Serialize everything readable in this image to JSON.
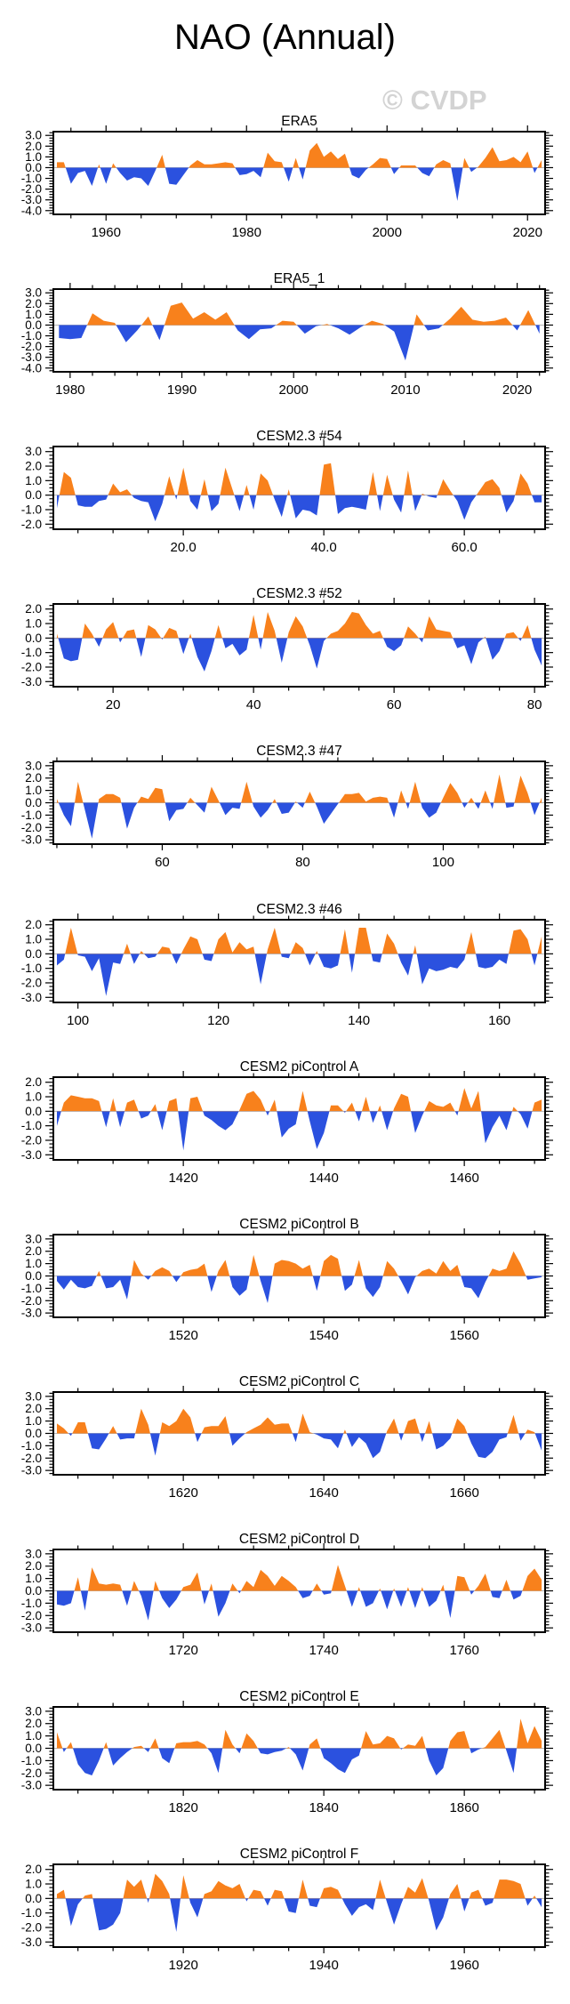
{
  "page": {
    "title": "NAO (Annual)",
    "watermark": "© CVDP"
  },
  "colors": {
    "positive_fill": "#F8811C",
    "negative_fill": "#2B51DF",
    "zero_line": "#B3B3B3",
    "frame": "#000000",
    "watermark": "#D3D3D3",
    "text": "#000000"
  },
  "chart_data": [
    {
      "type": "area",
      "title": "ERA5",
      "x_start": 1953,
      "x_step": 1,
      "xlim": [
        1952.5,
        2022.5
      ],
      "xticks": [
        1960,
        1980,
        2000,
        2020
      ],
      "xtick_labels": [
        "1960",
        "1980",
        "2000",
        "2020"
      ],
      "x_minor_step": 5,
      "ylim": [
        -4.35,
        3.35
      ],
      "yticks": [
        3,
        2,
        1,
        0,
        -1,
        -2,
        -3,
        -4
      ],
      "ytick_labels": [
        "3.0",
        "2.0",
        "1.0",
        "0.0",
        "-1.0",
        "-2.0",
        "-3.0",
        "-4.0"
      ],
      "values": [
        0.5,
        0.5,
        -1.5,
        -0.5,
        -0.3,
        -1.7,
        0.3,
        -1.5,
        0.4,
        -0.5,
        -1.2,
        -0.9,
        -1.0,
        -1.7,
        -0.3,
        1.2,
        -1.5,
        -1.6,
        -0.7,
        0.2,
        0.7,
        0.3,
        0.3,
        0.4,
        0.5,
        0.4,
        -0.7,
        -0.6,
        -0.3,
        -0.9,
        1.4,
        0.6,
        0.5,
        -1.3,
        0.9,
        -1.1,
        1.6,
        2.3,
        1.0,
        1.5,
        0.8,
        1.3,
        -0.7,
        -1.0,
        -0.2,
        0.3,
        0.9,
        0.8,
        -0.6,
        0.2,
        0.2,
        0.2,
        -0.5,
        -0.8,
        0.3,
        0.7,
        0.4,
        -3.1,
        0.9,
        -0.4,
        0.1,
        0.9,
        1.9,
        0.6,
        0.7,
        1.0,
        0.5,
        1.5,
        -0.5,
        0.7
      ]
    },
    {
      "type": "area",
      "title": "ERA5_1",
      "x_start": 1979,
      "x_step": 1,
      "xlim": [
        1978.5,
        2022.5
      ],
      "xticks": [
        1980,
        1990,
        2000,
        2010,
        2020
      ],
      "xtick_labels": [
        "1980",
        "1990",
        "2000",
        "2010",
        "2020"
      ],
      "x_minor_step": 2,
      "ylim": [
        -4.35,
        3.35
      ],
      "yticks": [
        3,
        2,
        1,
        0,
        -1,
        -2,
        -3,
        -4
      ],
      "ytick_labels": [
        "3.0",
        "2.0",
        "1.0",
        "0.0",
        "-1.0",
        "-2.0",
        "-3.0",
        "-4.0"
      ],
      "values": [
        -1.2,
        -1.3,
        -1.2,
        1.1,
        0.4,
        0.2,
        -1.6,
        -0.5,
        0.8,
        -1.4,
        1.8,
        2.1,
        0.6,
        1.2,
        0.5,
        1.2,
        -0.5,
        -1.3,
        -0.4,
        -0.3,
        0.4,
        0.3,
        -0.8,
        -0.1,
        0.1,
        -0.3,
        -0.9,
        -0.2,
        0.4,
        0.1,
        -0.6,
        -3.3,
        1.0,
        -0.5,
        -0.3,
        0.6,
        1.7,
        0.5,
        0.3,
        0.4,
        0.7,
        -0.5,
        1.4,
        -0.8
      ]
    },
    {
      "type": "area",
      "title": "CESM2.3 #54",
      "x_start": 2,
      "x_step": 1,
      "xlim": [
        1.5,
        71.5
      ],
      "xticks": [
        20,
        40,
        60
      ],
      "xtick_labels": [
        "20.0",
        "40.0",
        "60.0"
      ],
      "x_minor_step": 5,
      "ylim": [
        -2.35,
        3.35
      ],
      "yticks": [
        3,
        2,
        1,
        0,
        -1,
        -2
      ],
      "ytick_labels": [
        "3.0",
        "2.0",
        "1.0",
        "0.0",
        "-1.0",
        "-2.0"
      ],
      "values": [
        -0.9,
        1.6,
        1.2,
        -0.7,
        -0.8,
        -0.8,
        -0.4,
        -0.3,
        0.8,
        0.2,
        0.4,
        -0.2,
        -0.4,
        -0.5,
        -1.8,
        -0.6,
        1.3,
        -0.3,
        1.9,
        -0.4,
        -1.0,
        1.1,
        -1.1,
        -0.6,
        1.9,
        0.4,
        -1.1,
        0.7,
        -1.0,
        1.5,
        1.0,
        -0.3,
        -1.5,
        0.4,
        -1.6,
        -1.0,
        -1.1,
        -1.4,
        2.1,
        2.2,
        -1.3,
        -0.9,
        -0.8,
        -0.9,
        -1.0,
        1.6,
        -1.1,
        1.4,
        -0.3,
        -1.2,
        1.7,
        -1.1,
        0.1,
        -0.1,
        -0.2,
        1.1,
        0.3,
        -0.4,
        -1.7,
        -0.5,
        0.2,
        0.9,
        1.1,
        0.5,
        -1.2,
        -0.4,
        1.5,
        0.8,
        -0.5,
        -0.5
      ]
    },
    {
      "type": "area",
      "title": "CESM2.3 #52",
      "x_start": 12,
      "x_step": 1,
      "xlim": [
        11.5,
        81.5
      ],
      "xticks": [
        20,
        40,
        60,
        80
      ],
      "xtick_labels": [
        "20",
        "40",
        "60",
        "80"
      ],
      "x_minor_step": 5,
      "ylim": [
        -3.35,
        2.35
      ],
      "yticks": [
        2,
        1,
        0,
        -1,
        -2,
        -3
      ],
      "ytick_labels": [
        "2.0",
        "1.0",
        "0.0",
        "-1.0",
        "-2.0",
        "-3.0"
      ],
      "values": [
        0.3,
        -1.4,
        -1.6,
        -1.5,
        1.0,
        0.3,
        -0.6,
        0.6,
        1.1,
        -0.3,
        0.5,
        0.6,
        -1.3,
        0.9,
        0.6,
        -0.1,
        0.7,
        0.5,
        -1.1,
        0.3,
        -1.3,
        -2.3,
        -0.9,
        0.9,
        -0.7,
        -0.4,
        -1.2,
        -0.8,
        1.6,
        -0.8,
        1.8,
        0.5,
        -1.7,
        0.4,
        1.5,
        0.8,
        -0.5,
        -2.1,
        -0.2,
        0.3,
        0.5,
        1.0,
        1.8,
        1.7,
        0.9,
        0.3,
        0.5,
        -0.6,
        -0.9,
        -0.5,
        0.8,
        0.3,
        -0.3,
        1.5,
        0.6,
        0.5,
        0.4,
        -0.7,
        -0.5,
        -1.8,
        -0.3,
        0.1,
        -1.5,
        -0.9,
        0.3,
        0.4,
        -0.2,
        0.9,
        -0.8,
        -1.9
      ]
    },
    {
      "type": "area",
      "title": "CESM2.3 #47",
      "x_start": 45,
      "x_step": 1,
      "xlim": [
        44.5,
        114.5
      ],
      "xticks": [
        60,
        80,
        100
      ],
      "xtick_labels": [
        "60",
        "80",
        "100"
      ],
      "x_minor_step": 5,
      "ylim": [
        -3.35,
        3.35
      ],
      "yticks": [
        3,
        2,
        1,
        0,
        -1,
        -2,
        -3
      ],
      "ytick_labels": [
        "3.0",
        "2.0",
        "1.0",
        "0.0",
        "-1.0",
        "-2.0",
        "-3.0"
      ],
      "values": [
        0.3,
        -1.0,
        -1.9,
        1.7,
        -0.6,
        -2.9,
        0.3,
        0.7,
        0.7,
        0.4,
        -2.1,
        -0.4,
        0.5,
        0.3,
        1.2,
        1.1,
        -1.5,
        -0.6,
        -0.5,
        0.4,
        -0.2,
        -0.8,
        1.3,
        0.2,
        -1.0,
        -0.4,
        -0.5,
        1.7,
        -0.3,
        -1.2,
        -0.6,
        0.3,
        -0.9,
        -0.8,
        0.1,
        -0.4,
        0.9,
        -0.3,
        -1.7,
        -0.9,
        -0.1,
        0.7,
        0.7,
        0.8,
        0.1,
        0.4,
        0.5,
        0.4,
        -1.2,
        1.0,
        -0.5,
        1.7,
        -0.4,
        -1.2,
        -0.8,
        0.4,
        1.6,
        0.8,
        -0.4,
        0.4,
        -0.5,
        1.0,
        -0.5,
        2.3,
        -0.4,
        -0.3,
        2.2,
        0.8,
        -1.0,
        0.4
      ]
    },
    {
      "type": "area",
      "title": "CESM2.3 #46",
      "x_start": 97,
      "x_step": 1,
      "xlim": [
        96.5,
        166.5
      ],
      "xticks": [
        100,
        120,
        140,
        160
      ],
      "xtick_labels": [
        "100",
        "120",
        "140",
        "160"
      ],
      "x_minor_step": 5,
      "ylim": [
        -3.35,
        2.35
      ],
      "yticks": [
        2,
        1,
        0,
        -1,
        -2,
        -3
      ],
      "ytick_labels": [
        "2.0",
        "1.0",
        "0.0",
        "-1.0",
        "-2.0",
        "-3.0"
      ],
      "values": [
        -0.8,
        -0.4,
        1.8,
        -0.1,
        -0.2,
        -1.2,
        -0.3,
        -2.9,
        -0.6,
        -0.7,
        0.7,
        -0.7,
        0.2,
        -0.3,
        -0.2,
        0.5,
        0.4,
        -0.7,
        0.3,
        1.2,
        1.0,
        -0.4,
        -0.5,
        1.0,
        1.5,
        0.1,
        0.8,
        0.3,
        0.5,
        -2.1,
        0.3,
        1.8,
        -0.2,
        -0.3,
        0.8,
        0.4,
        -0.8,
        0.2,
        -0.9,
        -1.0,
        -0.8,
        1.7,
        -1.3,
        1.8,
        1.8,
        -0.5,
        -0.6,
        1.4,
        0.7,
        -0.6,
        -1.5,
        0.6,
        -2.1,
        -1.0,
        -1.2,
        -1.1,
        -0.9,
        -1.0,
        -0.4,
        1.5,
        -0.9,
        -1.0,
        -0.9,
        -0.4,
        -0.7,
        1.6,
        1.7,
        1.0,
        -0.8,
        1.2
      ]
    },
    {
      "type": "area",
      "title": "CESM2 piControl A",
      "x_start": 1402,
      "x_step": 1,
      "xlim": [
        1401.5,
        1471.5
      ],
      "xticks": [
        1420,
        1440,
        1460
      ],
      "xtick_labels": [
        "1420",
        "1440",
        "1460"
      ],
      "x_minor_step": 5,
      "ylim": [
        -3.35,
        2.35
      ],
      "yticks": [
        2,
        1,
        0,
        -1,
        -2,
        -3
      ],
      "ytick_labels": [
        "2.0",
        "1.0",
        "0.0",
        "-1.0",
        "-2.0",
        "-3.0"
      ],
      "values": [
        -1.0,
        0.6,
        1.1,
        1.0,
        0.9,
        0.9,
        0.7,
        -1.1,
        0.9,
        -1.1,
        0.6,
        0.8,
        -0.5,
        -0.3,
        0.5,
        -1.3,
        0.7,
        0.9,
        -2.7,
        0.9,
        1.0,
        -0.3,
        -0.6,
        -1.0,
        -1.3,
        -0.9,
        0.1,
        1.2,
        1.4,
        0.8,
        -0.3,
        0.8,
        -1.8,
        -1.2,
        -0.9,
        1.4,
        -0.7,
        -2.6,
        -1.5,
        0.4,
        0.4,
        -0.1,
        0.6,
        -0.7,
        1.0,
        -0.8,
        0.4,
        -1.3,
        0.2,
        1.2,
        1.0,
        -1.5,
        -0.3,
        0.7,
        0.4,
        0.3,
        0.6,
        -0.3,
        1.6,
        0.2,
        1.4,
        -2.2,
        -1.1,
        -0.3,
        -1.3,
        0.3,
        -0.2,
        -1.2,
        0.6,
        0.8
      ]
    },
    {
      "type": "area",
      "title": "CESM2 piControl B",
      "x_start": 1502,
      "x_step": 1,
      "xlim": [
        1501.5,
        1571.5
      ],
      "xticks": [
        1520,
        1540,
        1560
      ],
      "xtick_labels": [
        "1520",
        "1540",
        "1560"
      ],
      "x_minor_step": 5,
      "ylim": [
        -3.35,
        3.35
      ],
      "yticks": [
        3,
        2,
        1,
        0,
        -1,
        -2,
        -3
      ],
      "ytick_labels": [
        "3.0",
        "2.0",
        "1.0",
        "0.0",
        "-1.0",
        "-2.0",
        "-3.0"
      ],
      "values": [
        -0.4,
        -1.1,
        -0.3,
        -0.9,
        -1.0,
        -0.8,
        0.4,
        -1.0,
        -0.9,
        -0.3,
        -1.9,
        1.3,
        0.2,
        -0.3,
        0.4,
        0.7,
        0.4,
        -0.5,
        0.3,
        0.5,
        0.6,
        1.0,
        -1.3,
        0.4,
        1.3,
        -0.9,
        -1.6,
        -1.1,
        1.7,
        -0.4,
        -2.2,
        1.0,
        1.3,
        1.2,
        1.0,
        0.6,
        0.9,
        -1.2,
        1.2,
        1.7,
        1.4,
        -1.2,
        -0.7,
        1.3,
        -1.0,
        -1.7,
        -0.9,
        1.2,
        0.6,
        -0.4,
        -1.5,
        -0.1,
        0.4,
        0.6,
        0.2,
        1.2,
        0.4,
        0.9,
        -0.9,
        -1.0,
        -1.8,
        -0.5,
        0.6,
        0.4,
        0.6,
        2.0,
        1.0,
        -0.3,
        -0.2,
        -0.1
      ]
    },
    {
      "type": "area",
      "title": "CESM2 piControl C",
      "x_start": 1602,
      "x_step": 1,
      "xlim": [
        1601.5,
        1671.5
      ],
      "xticks": [
        1620,
        1640,
        1660
      ],
      "xtick_labels": [
        "1620",
        "1640",
        "1660"
      ],
      "x_minor_step": 5,
      "ylim": [
        -3.35,
        3.35
      ],
      "yticks": [
        3,
        2,
        1,
        0,
        -1,
        -2,
        -3
      ],
      "ytick_labels": [
        "3.0",
        "2.0",
        "1.0",
        "0.0",
        "-1.0",
        "-2.0",
        "-3.0"
      ],
      "values": [
        0.8,
        0.4,
        -0.2,
        0.9,
        0.9,
        -1.2,
        -1.3,
        -0.4,
        0.6,
        -0.5,
        -0.4,
        -0.4,
        2.0,
        0.7,
        -1.8,
        0.9,
        0.6,
        1.0,
        2.0,
        1.3,
        -0.7,
        0.5,
        0.6,
        0.6,
        1.4,
        -1.0,
        -0.4,
        0.1,
        0.4,
        0.7,
        1.3,
        0.7,
        0.8,
        0.8,
        -0.7,
        1.6,
        0.1,
        -0.1,
        -0.4,
        -0.5,
        -1.2,
        0.3,
        -1.1,
        -0.3,
        -0.8,
        -2.0,
        -1.5,
        0.2,
        1.2,
        -0.6,
        1.0,
        1.2,
        -0.7,
        1.0,
        -1.3,
        -1.0,
        -0.4,
        1.2,
        0.6,
        -0.8,
        -1.9,
        -2.0,
        -1.5,
        -0.5,
        -0.3,
        1.5,
        -0.6,
        0.3,
        0.1,
        -1.4
      ]
    },
    {
      "type": "area",
      "title": "CESM2 piControl D",
      "x_start": 1702,
      "x_step": 1,
      "xlim": [
        1701.5,
        1771.5
      ],
      "xticks": [
        1720,
        1740,
        1760
      ],
      "xtick_labels": [
        "1720",
        "1740",
        "1760"
      ],
      "x_minor_step": 5,
      "ylim": [
        -3.35,
        3.35
      ],
      "yticks": [
        3,
        2,
        1,
        0,
        -1,
        -2,
        -3
      ],
      "ytick_labels": [
        "3.0",
        "2.0",
        "1.0",
        "0.0",
        "-1.0",
        "-2.0",
        "-3.0"
      ],
      "values": [
        -1.1,
        -1.2,
        -1.0,
        1.1,
        -1.6,
        1.9,
        0.6,
        0.5,
        0.6,
        0.5,
        -1.2,
        0.8,
        -0.4,
        -2.4,
        0.8,
        -0.6,
        -1.4,
        -0.7,
        0.3,
        0.5,
        1.5,
        -1.1,
        0.6,
        -2.1,
        -1.0,
        0.6,
        -0.2,
        0.8,
        0.3,
        1.7,
        1.2,
        0.4,
        1.2,
        0.8,
        0.3,
        -0.6,
        -0.4,
        0.6,
        -0.3,
        -0.2,
        2.1,
        0.4,
        -1.3,
        0.3,
        -1.3,
        -1.0,
        0.2,
        -1.5,
        0.2,
        -1.3,
        0.3,
        -1.4,
        0.3,
        -1.3,
        -0.8,
        0.5,
        -2.2,
        1.2,
        1.1,
        -0.3,
        0.4,
        1.4,
        -0.5,
        -0.6,
        0.9,
        -0.7,
        -0.4,
        1.2,
        1.8,
        0.9
      ]
    },
    {
      "type": "area",
      "title": "CESM2 piControl E",
      "x_start": 1802,
      "x_step": 1,
      "xlim": [
        1801.5,
        1871.5
      ],
      "xticks": [
        1820,
        1840,
        1860
      ],
      "xtick_labels": [
        "1820",
        "1840",
        "1860"
      ],
      "x_minor_step": 5,
      "ylim": [
        -3.35,
        3.35
      ],
      "yticks": [
        3,
        2,
        1,
        0,
        -1,
        -2,
        -3
      ],
      "ytick_labels": [
        "3.0",
        "2.0",
        "1.0",
        "0.0",
        "-1.0",
        "-2.0",
        "-3.0"
      ],
      "values": [
        1.3,
        -0.3,
        0.5,
        -1.3,
        -2.0,
        -2.2,
        -1.0,
        0.5,
        -1.4,
        -0.8,
        -0.3,
        0.1,
        0.2,
        -0.3,
        0.8,
        -0.8,
        -1.2,
        0.4,
        0.5,
        0.5,
        0.6,
        0.3,
        -0.4,
        -2.0,
        1.5,
        0.3,
        -0.4,
        1.2,
        0.6,
        -0.4,
        -0.5,
        -0.3,
        -0.2,
        0.1,
        -0.5,
        -1.8,
        0.3,
        0.8,
        -0.8,
        -1.2,
        -1.7,
        -2.0,
        -0.9,
        -0.6,
        1.4,
        0.3,
        0.4,
        1.0,
        0.8,
        -0.1,
        0.3,
        0.2,
        1.0,
        -1.0,
        -2.2,
        -1.6,
        0.6,
        1.3,
        1.4,
        -0.4,
        -0.1,
        0.1,
        0.8,
        1.5,
        -0.2,
        -2.0,
        2.4,
        0.4,
        1.8,
        0.6
      ]
    },
    {
      "type": "area",
      "title": "CESM2 piControl F",
      "x_start": 1902,
      "x_step": 1,
      "xlim": [
        1901.5,
        1971.5
      ],
      "xticks": [
        1920,
        1940,
        1960
      ],
      "xtick_labels": [
        "1920",
        "1940",
        "1960"
      ],
      "x_minor_step": 5,
      "ylim": [
        -3.35,
        2.35
      ],
      "yticks": [
        2,
        1,
        0,
        -1,
        -2,
        -3
      ],
      "ytick_labels": [
        "2.0",
        "1.0",
        "0.0",
        "-1.0",
        "-2.0",
        "-3.0"
      ],
      "values": [
        0.3,
        0.6,
        -1.9,
        -0.4,
        0.2,
        0.3,
        -2.2,
        -2.1,
        -1.8,
        -1.0,
        1.3,
        0.8,
        1.3,
        -0.3,
        1.7,
        1.2,
        0.3,
        -2.3,
        1.6,
        -0.3,
        -1.3,
        0.3,
        0.5,
        1.2,
        0.9,
        0.7,
        1.0,
        -0.2,
        0.6,
        0.5,
        -0.5,
        0.6,
        0.5,
        -0.9,
        -1.0,
        1.3,
        -0.5,
        -0.6,
        0.7,
        0.8,
        0.6,
        -0.4,
        -1.2,
        -0.6,
        -0.4,
        -0.8,
        1.3,
        -0.3,
        -1.8,
        -0.4,
        0.8,
        0.4,
        1.4,
        -0.2,
        -2.2,
        -1.3,
        0.3,
        1.0,
        -0.9,
        0.4,
        0.6,
        -0.5,
        -0.3,
        1.3,
        1.3,
        1.2,
        1.0,
        -0.5,
        0.2,
        -0.6
      ]
    }
  ]
}
